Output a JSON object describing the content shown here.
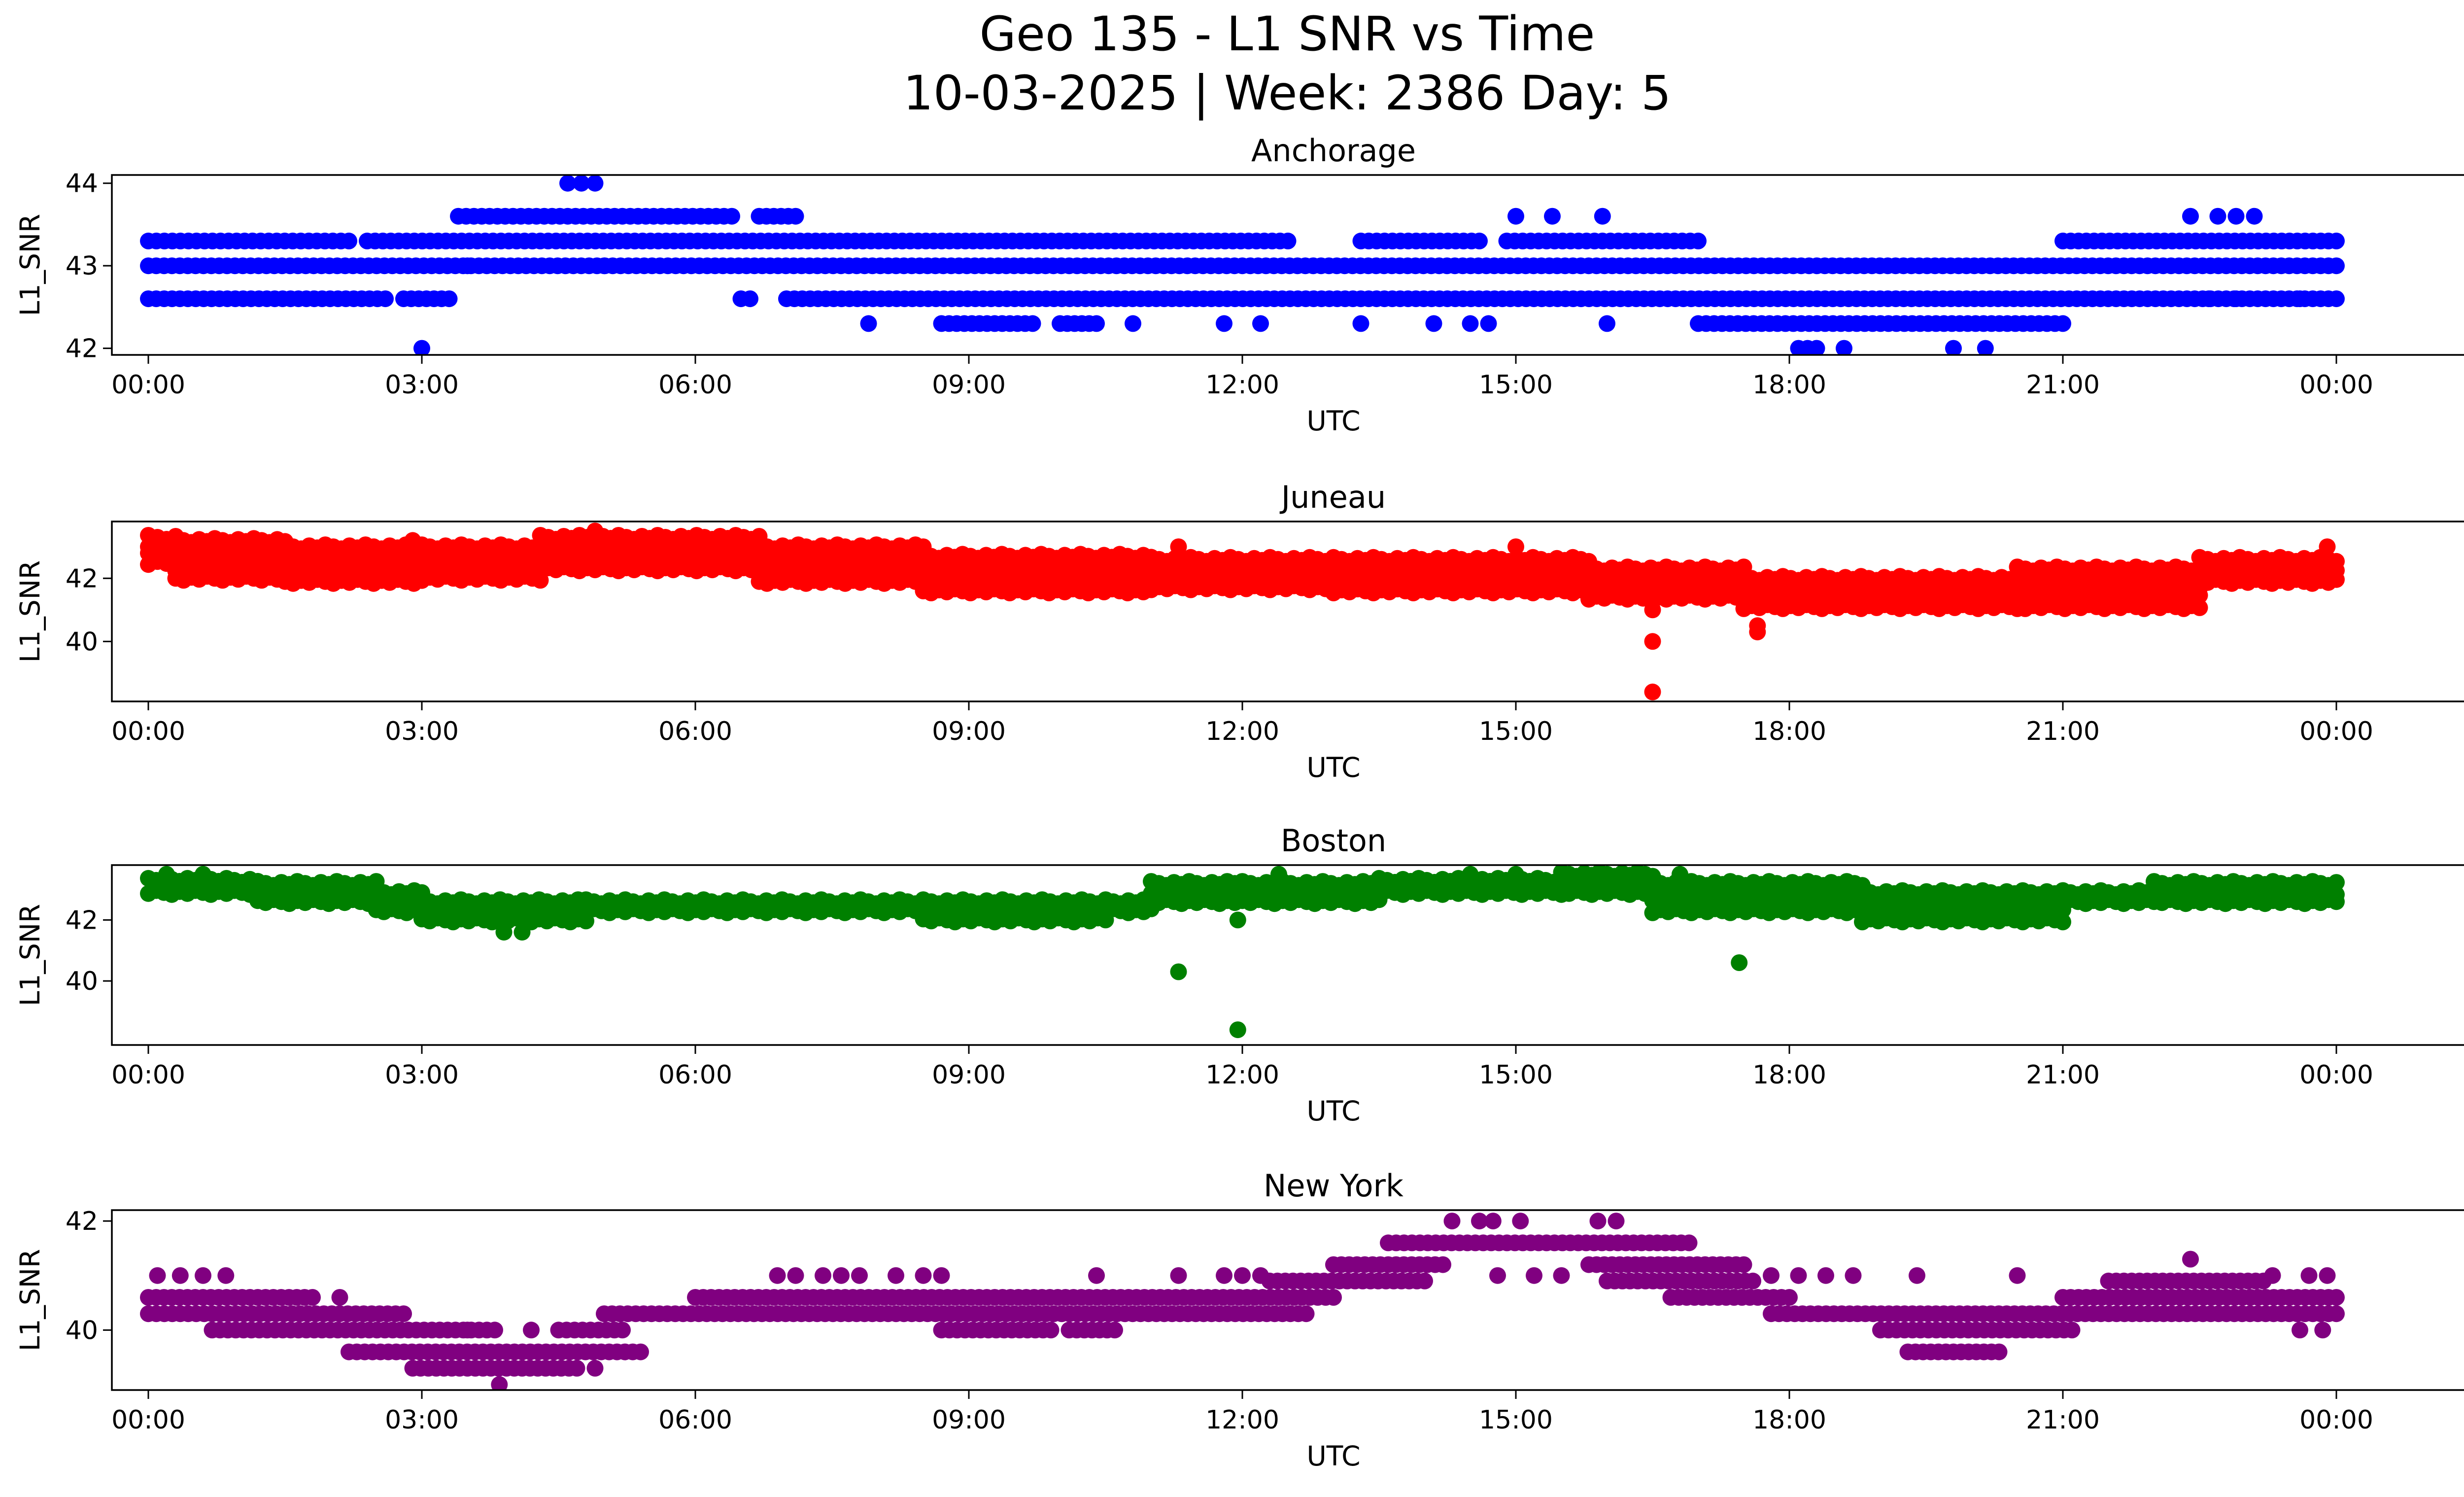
{
  "figure": {
    "title_line1": "Geo 135 - L1 SNR vs Time",
    "title_line2": "10-03-2025 | Week: 2386 Day: 5"
  },
  "chart_data": [
    {
      "type": "scatter",
      "title": "Anchorage",
      "xlabel": "UTC",
      "ylabel": "L1_SNR",
      "color": "#0000ff",
      "xlim": [
        -0.4,
        26.4
      ],
      "ylim": [
        41.92,
        44.1
      ],
      "x_ticks": [
        0,
        3,
        6,
        9,
        12,
        15,
        18,
        21,
        24
      ],
      "x_tick_labels": [
        "00:00",
        "03:00",
        "06:00",
        "09:00",
        "12:00",
        "15:00",
        "18:00",
        "21:00",
        "00:00"
      ],
      "y_ticks": [
        42,
        43,
        44
      ],
      "y_tick_labels": [
        "42",
        "43",
        "44"
      ],
      "bands": [
        {
          "y": 43.0,
          "segments": [
            [
              0,
              24
            ]
          ]
        },
        {
          "y": 42.6,
          "segments": [
            [
              0,
              2.6
            ],
            [
              2.8,
              3.3
            ],
            [
              6.5,
              6.6
            ],
            [
              7.0,
              24.0
            ]
          ]
        },
        {
          "y": 43.3,
          "segments": [
            [
              0,
              2.2
            ],
            [
              2.4,
              12.5
            ],
            [
              13.3,
              14.6
            ],
            [
              14.9,
              17.0
            ],
            [
              21.0,
              24.0
            ]
          ]
        },
        {
          "y": 43.6,
          "segments": [
            [
              3.4,
              6.4
            ],
            [
              6.7,
              7.1
            ]
          ]
        },
        {
          "y": 42.3,
          "segments": [
            [
              8.7,
              9.7
            ],
            [
              10.0,
              10.4
            ],
            [
              17.0,
              21.0
            ]
          ]
        }
      ],
      "points": [
        [
          3.0,
          42.0
        ],
        [
          4.6,
          44.0
        ],
        [
          4.75,
          44.0
        ],
        [
          4.9,
          44.0
        ],
        [
          7.9,
          42.3
        ],
        [
          10.8,
          42.3
        ],
        [
          11.8,
          42.3
        ],
        [
          12.2,
          42.3
        ],
        [
          13.3,
          42.3
        ],
        [
          14.1,
          42.3
        ],
        [
          14.5,
          42.3
        ],
        [
          14.7,
          42.3
        ],
        [
          16.0,
          42.3
        ],
        [
          15.0,
          43.6
        ],
        [
          15.4,
          43.6
        ],
        [
          15.95,
          43.6
        ],
        [
          22.4,
          43.6
        ],
        [
          22.7,
          43.6
        ],
        [
          22.9,
          43.6
        ],
        [
          23.1,
          43.6
        ],
        [
          18.1,
          42.0
        ],
        [
          18.2,
          42.0
        ],
        [
          18.3,
          42.0
        ],
        [
          18.6,
          42.0
        ],
        [
          19.8,
          42.0
        ],
        [
          20.15,
          42.0
        ],
        [
          22.6,
          42.6
        ],
        [
          22.9,
          42.6
        ],
        [
          23.6,
          42.6
        ],
        [
          3.5,
          43.0
        ],
        [
          5.0,
          43.0
        ]
      ]
    },
    {
      "type": "scatter",
      "title": "Juneau",
      "xlabel": "UTC",
      "ylabel": "L1_SNR",
      "color": "#ff0000",
      "xlim": [
        -0.4,
        26.4
      ],
      "ylim": [
        38.1,
        43.8
      ],
      "x_ticks": [
        0,
        3,
        6,
        9,
        12,
        15,
        18,
        21,
        24
      ],
      "x_tick_labels": [
        "00:00",
        "03:00",
        "06:00",
        "09:00",
        "12:00",
        "15:00",
        "18:00",
        "21:00",
        "00:00"
      ],
      "y_ticks": [
        40,
        42
      ],
      "y_tick_labels": [
        "40",
        "42"
      ],
      "bands": [
        {
          "x0": 0,
          "x1": 0.3,
          "top": 43.3,
          "bottom": 42.5
        },
        {
          "x0": 0.3,
          "x1": 1.5,
          "top": 43.2,
          "bottom": 42.0
        },
        {
          "x0": 1.5,
          "x1": 3.0,
          "top": 43.0,
          "bottom": 41.9
        },
        {
          "x0": 3.0,
          "x1": 4.3,
          "top": 43.0,
          "bottom": 42.0
        },
        {
          "x0": 4.3,
          "x1": 6.7,
          "top": 43.3,
          "bottom": 42.3
        },
        {
          "x0": 6.7,
          "x1": 8.5,
          "top": 43.0,
          "bottom": 41.9
        },
        {
          "x0": 8.5,
          "x1": 11.0,
          "top": 42.7,
          "bottom": 41.6
        },
        {
          "x0": 11.0,
          "x1": 13.0,
          "top": 42.6,
          "bottom": 41.7
        },
        {
          "x0": 13.0,
          "x1": 15.8,
          "top": 42.6,
          "bottom": 41.6
        },
        {
          "x0": 15.8,
          "x1": 17.5,
          "top": 42.3,
          "bottom": 41.4
        },
        {
          "x0": 17.5,
          "x1": 20.5,
          "top": 42.0,
          "bottom": 41.1
        },
        {
          "x0": 20.5,
          "x1": 22.5,
          "top": 42.3,
          "bottom": 41.1
        },
        {
          "x0": 22.5,
          "x1": 24.0,
          "top": 42.6,
          "bottom": 41.9
        }
      ],
      "points": [
        [
          16.5,
          40.0
        ],
        [
          16.5,
          38.4
        ],
        [
          16.5,
          41.0
        ],
        [
          17.65,
          40.3
        ],
        [
          17.65,
          40.5
        ],
        [
          4.9,
          43.5
        ],
        [
          11.3,
          43.0
        ],
        [
          15.0,
          43.0
        ],
        [
          23.9,
          43.0
        ],
        [
          2.9,
          43.2
        ]
      ]
    },
    {
      "type": "scatter",
      "title": "Boston",
      "xlabel": "UTC",
      "ylabel": "L1_SNR",
      "color": "#008000",
      "xlim": [
        -0.4,
        26.4
      ],
      "ylim": [
        37.9,
        43.8
      ],
      "x_ticks": [
        0,
        3,
        6,
        9,
        12,
        15,
        18,
        21,
        24
      ],
      "x_tick_labels": [
        "00:00",
        "03:00",
        "06:00",
        "09:00",
        "12:00",
        "15:00",
        "18:00",
        "21:00",
        "00:00"
      ],
      "y_ticks": [
        40,
        42
      ],
      "y_tick_labels": [
        "40",
        "42"
      ],
      "bands": [
        {
          "x0": 0,
          "x1": 1.2,
          "top": 43.3,
          "bottom": 42.9
        },
        {
          "x0": 1.2,
          "x1": 2.5,
          "top": 43.2,
          "bottom": 42.6
        },
        {
          "x0": 2.5,
          "x1": 3.0,
          "top": 42.9,
          "bottom": 42.3
        },
        {
          "x0": 3.0,
          "x1": 4.8,
          "top": 42.6,
          "bottom": 42.0
        },
        {
          "x0": 4.8,
          "x1": 8.5,
          "top": 42.6,
          "bottom": 42.3
        },
        {
          "x0": 8.5,
          "x1": 10.5,
          "top": 42.6,
          "bottom": 42.0
        },
        {
          "x0": 10.5,
          "x1": 11.0,
          "top": 42.6,
          "bottom": 42.3
        },
        {
          "x0": 11.0,
          "x1": 12.0,
          "top": 43.2,
          "bottom": 42.6
        },
        {
          "x0": 12.0,
          "x1": 13.5,
          "top": 43.2,
          "bottom": 42.6
        },
        {
          "x0": 13.5,
          "x1": 15.5,
          "top": 43.3,
          "bottom": 42.9
        },
        {
          "x0": 15.5,
          "x1": 16.5,
          "top": 43.5,
          "bottom": 42.9
        },
        {
          "x0": 16.5,
          "x1": 18.8,
          "top": 43.2,
          "bottom": 42.3
        },
        {
          "x0": 18.8,
          "x1": 21.0,
          "top": 42.9,
          "bottom": 42.0
        },
        {
          "x0": 21.0,
          "x1": 22.0,
          "top": 42.9,
          "bottom": 42.6
        },
        {
          "x0": 22.0,
          "x1": 24.0,
          "top": 43.2,
          "bottom": 42.6
        }
      ],
      "points": [
        [
          11.3,
          40.3
        ],
        [
          11.95,
          38.4
        ],
        [
          11.95,
          42.0
        ],
        [
          17.45,
          40.6
        ],
        [
          3.9,
          41.6
        ],
        [
          4.1,
          41.6
        ],
        [
          0.2,
          43.5
        ],
        [
          0.6,
          43.5
        ],
        [
          12.4,
          43.5
        ],
        [
          14.5,
          43.5
        ],
        [
          15.0,
          43.5
        ],
        [
          16.8,
          43.5
        ]
      ]
    },
    {
      "type": "scatter",
      "title": "New York",
      "xlabel": "UTC",
      "ylabel": "L1_SNR",
      "color": "#800080",
      "xlim": [
        -0.4,
        26.4
      ],
      "ylim": [
        38.9,
        42.2
      ],
      "x_ticks": [
        0,
        3,
        6,
        9,
        12,
        15,
        18,
        21,
        24
      ],
      "x_tick_labels": [
        "00:00",
        "03:00",
        "06:00",
        "09:00",
        "12:00",
        "15:00",
        "18:00",
        "21:00",
        "00:00"
      ],
      "y_ticks": [
        40,
        42
      ],
      "y_tick_labels": [
        "40",
        "42"
      ],
      "bands": [
        {
          "y": 40.6,
          "segments": [
            [
              0,
              1.8
            ],
            [
              6.0,
              13.0
            ],
            [
              16.7,
              18.0
            ],
            [
              21.0,
              24.0
            ]
          ]
        },
        {
          "y": 40.3,
          "segments": [
            [
              0,
              2.8
            ],
            [
              5.0,
              12.7
            ],
            [
              17.8,
              24.0
            ]
          ]
        },
        {
          "y": 40.0,
          "segments": [
            [
              0.7,
              3.8
            ],
            [
              4.5,
              5.2
            ],
            [
              8.7,
              9.9
            ],
            [
              10.1,
              10.6
            ],
            [
              19.0,
              21.1
            ]
          ]
        },
        {
          "y": 39.6,
          "segments": [
            [
              2.2,
              5.4
            ],
            [
              19.3,
              20.3
            ]
          ]
        },
        {
          "y": 39.3,
          "segments": [
            [
              2.9,
              4.7
            ]
          ]
        },
        {
          "y": 40.9,
          "segments": [
            [
              12.3,
              14.0
            ],
            [
              16.0,
              17.6
            ],
            [
              21.5,
              23.2
            ]
          ]
        },
        {
          "y": 41.2,
          "segments": [
            [
              13.0,
              14.2
            ],
            [
              15.8,
              17.5
            ]
          ]
        },
        {
          "y": 41.6,
          "segments": [
            [
              13.6,
              16.9
            ]
          ]
        }
      ],
      "points": [
        [
          3.85,
          39.0
        ],
        [
          14.3,
          42.0
        ],
        [
          14.6,
          42.0
        ],
        [
          14.75,
          42.0
        ],
        [
          15.05,
          42.0
        ],
        [
          15.9,
          42.0
        ],
        [
          16.1,
          42.0
        ],
        [
          0.1,
          41.0
        ],
        [
          0.35,
          41.0
        ],
        [
          0.6,
          41.0
        ],
        [
          0.85,
          41.0
        ],
        [
          6.9,
          41.0
        ],
        [
          7.1,
          41.0
        ],
        [
          7.4,
          41.0
        ],
        [
          7.6,
          41.0
        ],
        [
          7.8,
          41.0
        ],
        [
          8.2,
          41.0
        ],
        [
          8.5,
          41.0
        ],
        [
          8.7,
          41.0
        ],
        [
          10.4,
          41.0
        ],
        [
          11.3,
          41.0
        ],
        [
          11.8,
          41.0
        ],
        [
          12.0,
          41.0
        ],
        [
          12.2,
          41.0
        ],
        [
          17.8,
          41.0
        ],
        [
          18.1,
          41.0
        ],
        [
          18.4,
          41.0
        ],
        [
          18.7,
          41.0
        ],
        [
          19.4,
          41.0
        ],
        [
          20.5,
          41.0
        ],
        [
          22.4,
          41.3
        ],
        [
          23.3,
          41.0
        ],
        [
          23.7,
          41.0
        ],
        [
          23.9,
          41.0
        ],
        [
          2.1,
          40.6
        ],
        [
          3.5,
          40.0
        ],
        [
          4.2,
          40.0
        ],
        [
          4.9,
          39.3
        ],
        [
          23.6,
          40.0
        ],
        [
          23.85,
          40.0
        ],
        [
          14.8,
          41.0
        ],
        [
          15.2,
          41.0
        ],
        [
          15.5,
          41.0
        ]
      ]
    }
  ]
}
